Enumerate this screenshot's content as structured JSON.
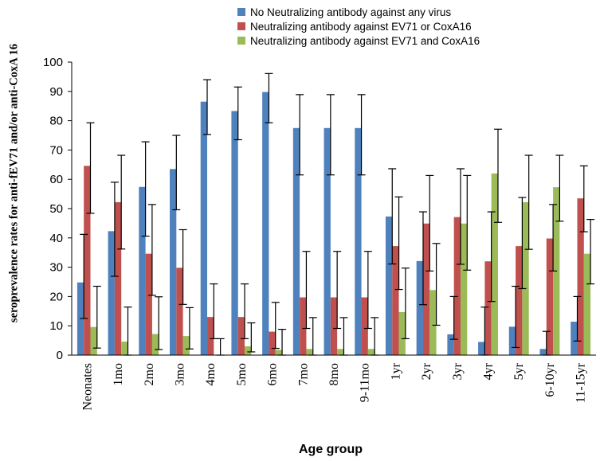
{
  "chart_data": {
    "type": "bar",
    "title": "",
    "xlabel": "Age group",
    "ylabel": "seroprevalence rates for anti-fEV71 and/or anti-CoxA 16",
    "ylim": [
      0,
      100
    ],
    "yticks": [
      0,
      10,
      20,
      30,
      40,
      50,
      60,
      70,
      80,
      90,
      100
    ],
    "grid": false,
    "legend_position": "top-right",
    "error_bars": true,
    "categories": [
      "Neonates",
      "1mo",
      "2mo",
      "3mo",
      "4mo",
      "5mo",
      "6mo",
      "7mo",
      "8mo",
      "9-11mo",
      "1yr",
      "2yr",
      "3yr",
      "4yr",
      "5yr",
      "6-10yr",
      "11-15yr"
    ],
    "series": [
      {
        "name": "No Neutralizing antibody against any virus",
        "color": "#4F81BD",
        "values": [
          24.8,
          42.3,
          57.4,
          63.5,
          86.5,
          83.3,
          89.8,
          77.5,
          77.5,
          77.5,
          47.3,
          32.1,
          7.1,
          4.5,
          9.7,
          2.1,
          11.4
        ],
        "err_low": [
          12.5,
          26.9,
          40.6,
          49.6,
          75.3,
          73.5,
          79.3,
          61.5,
          61.5,
          61.5,
          31.1,
          17.2,
          5.4,
          0,
          2.6,
          0,
          4.8
        ],
        "err_high": [
          41.2,
          59,
          72.8,
          75,
          94,
          91.5,
          96.1,
          88.9,
          88.9,
          88.9,
          63.6,
          48.9,
          20,
          16.4,
          23.5,
          8.1,
          20
        ]
      },
      {
        "name": "Neutralizing antibody against EV71 or CoxA16",
        "color": "#C0504D",
        "values": [
          64.6,
          52.2,
          34.6,
          29.8,
          13,
          13,
          8,
          19.7,
          19.7,
          19.7,
          37.2,
          44.9,
          47.1,
          32,
          37.2,
          39.8,
          53.5
        ],
        "err_low": [
          48.4,
          36.2,
          20.4,
          17.3,
          5.6,
          5.6,
          2.3,
          9.1,
          9.1,
          9.1,
          22.4,
          28.7,
          31,
          18.3,
          22.7,
          28.7,
          42.1
        ],
        "err_high": [
          79.3,
          68.2,
          51.4,
          42.8,
          24.3,
          24.3,
          18,
          35.4,
          35.4,
          35.4,
          54,
          61.3,
          63.6,
          48.9,
          53.8,
          51.4,
          64.6
        ]
      },
      {
        "name": "Neutralizing antibody against EV71 and CoxA16",
        "color": "#9BBB59",
        "values": [
          9.6,
          4.6,
          7.2,
          6.5,
          0,
          3,
          1.8,
          2.1,
          2.1,
          2.1,
          14.7,
          22.2,
          44.9,
          62,
          52.2,
          57.3,
          34.6
        ],
        "err_low": [
          2.4,
          0,
          1.9,
          2.1,
          0,
          1.1,
          0,
          0,
          0,
          0,
          5.6,
          10.2,
          29,
          45.3,
          36.1,
          45.7,
          24.3
        ],
        "err_high": [
          23.5,
          16.4,
          19.9,
          16.2,
          5.6,
          11,
          8.8,
          12.8,
          12.8,
          12.8,
          29.7,
          38.1,
          61.3,
          77.1,
          68.2,
          68.2,
          46.3
        ]
      }
    ]
  }
}
